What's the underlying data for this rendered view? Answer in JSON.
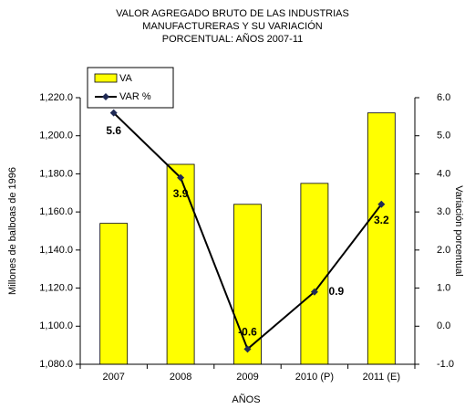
{
  "chart_data": {
    "type": "bar_line",
    "title_lines": [
      "VALOR AGREGADO BRUTO  DE LAS INDUSTRIAS",
      "MANUFACTURERAS  Y SU VARIACIÓN",
      "PORCENTUAL:  AÑOS  2007-11"
    ],
    "x_label": "AÑOS",
    "y_label": "Millones de balboas de 1996",
    "y2_label": "Variación porcentual",
    "categories": [
      "2007",
      "2008",
      "2009",
      "2010 (P)",
      "2011 (E)"
    ],
    "series": [
      {
        "name": "VA",
        "color": "#ffff00",
        "kind": "bar",
        "values": [
          1154,
          1185,
          1164,
          1175,
          1212
        ]
      },
      {
        "name": "VAR %",
        "color": "#000000",
        "marker_color": "#1f2a55",
        "kind": "line",
        "axis": "y2",
        "values": [
          5.6,
          3.9,
          -0.6,
          0.9,
          3.2
        ]
      }
    ],
    "ylim": [
      1080,
      1220
    ],
    "yticks": [
      {
        "value": 1080,
        "label": "1,080.0"
      },
      {
        "value": 1100,
        "label": "1,100.0"
      },
      {
        "value": 1120,
        "label": "1,120.0"
      },
      {
        "value": 1140,
        "label": "1,140.0"
      },
      {
        "value": 1160,
        "label": "1,160.0"
      },
      {
        "value": 1180,
        "label": "1,180.0"
      },
      {
        "value": 1200,
        "label": "1,200.0"
      },
      {
        "value": 1220,
        "label": "1,220.0"
      }
    ],
    "y2lim": [
      -1,
      6
    ],
    "y2ticks": [
      {
        "value": -1,
        "label": "-1.0"
      },
      {
        "value": 0,
        "label": "0.0"
      },
      {
        "value": 1,
        "label": "1.0"
      },
      {
        "value": 2,
        "label": "2.0"
      },
      {
        "value": 3,
        "label": "3.0"
      },
      {
        "value": 4,
        "label": "4.0"
      },
      {
        "value": 5,
        "label": "5.0"
      },
      {
        "value": 6,
        "label": "6.0"
      }
    ],
    "legend": "top-left"
  }
}
